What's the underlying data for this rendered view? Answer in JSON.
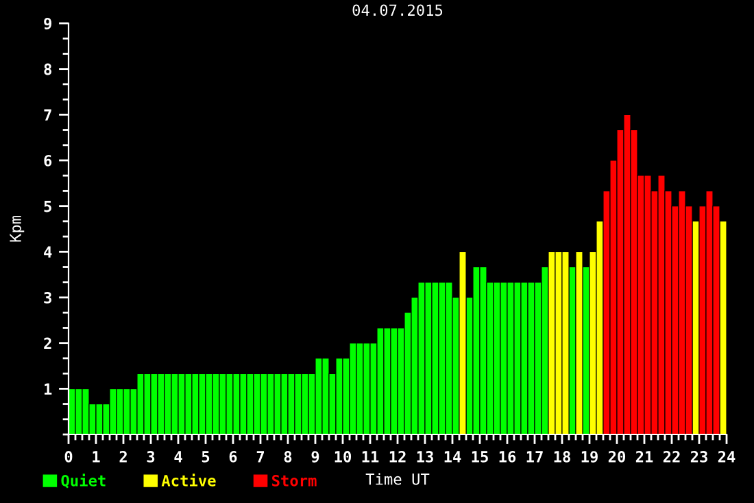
{
  "chart_data": {
    "type": "bar",
    "title": "04.07.2015",
    "xlabel": "Time UT",
    "ylabel": "Kpm",
    "x": [
      0.125,
      0.375,
      0.625,
      0.875,
      1.125,
      1.375,
      1.625,
      1.875,
      2.125,
      2.375,
      2.625,
      2.875,
      3.125,
      3.375,
      3.625,
      3.875,
      4.125,
      4.375,
      4.625,
      4.875,
      5.125,
      5.375,
      5.625,
      5.875,
      6.125,
      6.375,
      6.625,
      6.875,
      7.125,
      7.375,
      7.625,
      7.875,
      8.125,
      8.375,
      8.625,
      8.875,
      9.125,
      9.375,
      9.625,
      9.875,
      10.125,
      10.375,
      10.625,
      10.875,
      11.125,
      11.375,
      11.625,
      11.875,
      12.125,
      12.375,
      12.625,
      12.875,
      13.125,
      13.375,
      13.625,
      13.875,
      14.125,
      14.375,
      14.625,
      14.875,
      15.125,
      15.375,
      15.625,
      15.875,
      16.125,
      16.375,
      16.625,
      16.875,
      17.125,
      17.375,
      17.625,
      17.875,
      18.125,
      18.375,
      18.625,
      18.875,
      19.125,
      19.375,
      19.625,
      19.875,
      20.125,
      20.375,
      20.625,
      20.875,
      21.125,
      21.375,
      21.625,
      21.875,
      22.125,
      22.375,
      22.625,
      22.875,
      23.125,
      23.375,
      23.625,
      23.875
    ],
    "series": [
      {
        "name": "Quiet",
        "color": "#00ff00",
        "values": [
          1,
          1,
          1,
          0.67,
          0.67,
          0.67,
          1,
          1,
          1,
          1,
          1.33,
          1.33,
          1.33,
          1.33,
          1.33,
          1.33,
          1.33,
          1.33,
          1.33,
          1.33,
          1.33,
          1.33,
          1.33,
          1.33,
          1.33,
          1.33,
          1.33,
          1.33,
          1.33,
          1.33,
          1.33,
          1.33,
          1.33,
          1.33,
          1.33,
          1.33,
          1.67,
          1.67,
          1.33,
          1.67,
          1.67,
          2,
          2,
          2,
          2,
          2.33,
          2.33,
          2.33,
          2.33,
          2.67,
          3,
          3.33,
          3.33,
          3.33,
          3.33,
          3.33,
          3,
          null,
          3,
          3.67,
          3.67,
          3.33,
          3.33,
          3.33,
          3.33,
          3.33,
          3.33,
          3.33,
          3.33,
          3.67,
          null,
          null,
          null,
          3.67,
          null,
          3.67,
          null,
          null,
          null,
          null,
          null,
          null,
          null,
          null,
          null,
          null,
          null,
          null,
          null,
          null,
          null,
          null,
          null,
          null,
          null,
          null
        ]
      },
      {
        "name": "Active",
        "color": "#ffff00",
        "values": [
          null,
          null,
          null,
          null,
          null,
          null,
          null,
          null,
          null,
          null,
          null,
          null,
          null,
          null,
          null,
          null,
          null,
          null,
          null,
          null,
          null,
          null,
          null,
          null,
          null,
          null,
          null,
          null,
          null,
          null,
          null,
          null,
          null,
          null,
          null,
          null,
          null,
          null,
          null,
          null,
          null,
          null,
          null,
          null,
          null,
          null,
          null,
          null,
          null,
          null,
          null,
          null,
          null,
          null,
          null,
          null,
          null,
          4,
          null,
          null,
          null,
          null,
          null,
          null,
          null,
          null,
          null,
          null,
          null,
          null,
          4,
          4,
          4,
          null,
          4,
          null,
          4,
          4.67,
          null,
          null,
          null,
          null,
          null,
          null,
          null,
          null,
          null,
          null,
          null,
          null,
          null,
          4.67,
          null,
          null,
          null,
          4.67
        ]
      },
      {
        "name": "Storm",
        "color": "#ff0000",
        "values": [
          null,
          null,
          null,
          null,
          null,
          null,
          null,
          null,
          null,
          null,
          null,
          null,
          null,
          null,
          null,
          null,
          null,
          null,
          null,
          null,
          null,
          null,
          null,
          null,
          null,
          null,
          null,
          null,
          null,
          null,
          null,
          null,
          null,
          null,
          null,
          null,
          null,
          null,
          null,
          null,
          null,
          null,
          null,
          null,
          null,
          null,
          null,
          null,
          null,
          null,
          null,
          null,
          null,
          null,
          null,
          null,
          null,
          null,
          null,
          null,
          null,
          null,
          null,
          null,
          null,
          null,
          null,
          null,
          null,
          null,
          null,
          null,
          null,
          null,
          null,
          null,
          null,
          null,
          5.33,
          6,
          6.67,
          7,
          6.67,
          5.67,
          5.67,
          5.33,
          5.67,
          5.33,
          5,
          5.33,
          5,
          null,
          5,
          5.33,
          5,
          null
        ]
      }
    ],
    "xlim": [
      0,
      24
    ],
    "ylim": [
      0,
      9
    ],
    "xticks": [
      0,
      {
        "value": 0.25,
        "label": null
      },
      {
        "value": 0.5,
        "label": null
      },
      {
        "value": 0.75,
        "label": null
      },
      1,
      {
        "value": 1.25,
        "label": null
      },
      {
        "value": 1.5,
        "label": null
      },
      {
        "value": 1.75,
        "label": null
      },
      2,
      {
        "value": 2.25,
        "label": null
      },
      {
        "value": 2.5,
        "label": null
      },
      {
        "value": 2.75,
        "label": null
      },
      3,
      {
        "value": 3.25,
        "label": null
      },
      {
        "value": 3.5,
        "label": null
      },
      {
        "value": 3.75,
        "label": null
      },
      4,
      {
        "value": 4.25,
        "label": null
      },
      {
        "value": 4.5,
        "label": null
      },
      {
        "value": 4.75,
        "label": null
      },
      5,
      {
        "value": 5.25,
        "label": null
      },
      {
        "value": 5.5,
        "label": null
      },
      {
        "value": 5.75,
        "label": null
      },
      6,
      {
        "value": 6.25,
        "label": null
      },
      {
        "value": 6.5,
        "label": null
      },
      {
        "value": 6.75,
        "label": null
      },
      7,
      {
        "value": 7.25,
        "label": null
      },
      {
        "value": 7.5,
        "label": null
      },
      {
        "value": 7.75,
        "label": null
      },
      8,
      {
        "value": 8.25,
        "label": null
      },
      {
        "value": 8.5,
        "label": null
      },
      {
        "value": 8.75,
        "label": null
      },
      9,
      {
        "value": 9.25,
        "label": null
      },
      {
        "value": 9.5,
        "label": null
      },
      {
        "value": 9.75,
        "label": null
      },
      10,
      {
        "value": 10.25,
        "label": null
      },
      {
        "value": 10.5,
        "label": null
      },
      {
        "value": 10.75,
        "label": null
      },
      11,
      {
        "value": 11.25,
        "label": null
      },
      {
        "value": 11.5,
        "label": null
      },
      {
        "value": 11.75,
        "label": null
      },
      12,
      {
        "value": 12.25,
        "label": null
      },
      {
        "value": 12.5,
        "label": null
      },
      {
        "value": 12.75,
        "label": null
      },
      13,
      {
        "value": 13.25,
        "label": null
      },
      {
        "value": 13.5,
        "label": null
      },
      {
        "value": 13.75,
        "label": null
      },
      14,
      {
        "value": 14.25,
        "label": null
      },
      {
        "value": 14.5,
        "label": null
      },
      {
        "value": 14.75,
        "label": null
      },
      15,
      {
        "value": 15.25,
        "label": null
      },
      {
        "value": 15.5,
        "label": null
      },
      {
        "value": 15.75,
        "label": null
      },
      16,
      {
        "value": 16.25,
        "label": null
      },
      {
        "value": 16.5,
        "label": null
      },
      {
        "value": 16.75,
        "label": null
      },
      17,
      {
        "value": 17.25,
        "label": null
      },
      {
        "value": 17.5,
        "label": null
      },
      {
        "value": 17.75,
        "label": null
      },
      18,
      {
        "value": 18.25,
        "label": null
      },
      {
        "value": 18.5,
        "label": null
      },
      {
        "value": 18.75,
        "label": null
      },
      19,
      {
        "value": 19.25,
        "label": null
      },
      {
        "value": 19.5,
        "label": null
      },
      {
        "value": 19.75,
        "label": null
      },
      20,
      {
        "value": 20.25,
        "label": null
      },
      {
        "value": 20.5,
        "label": null
      },
      {
        "value": 20.75,
        "label": null
      },
      21,
      {
        "value": 21.25,
        "label": null
      },
      {
        "value": 21.5,
        "label": null
      },
      {
        "value": 21.75,
        "label": null
      },
      22,
      {
        "value": 22.25,
        "label": null
      },
      {
        "value": 22.5,
        "label": null
      },
      {
        "value": 22.75,
        "label": null
      },
      23,
      {
        "value": 23.25,
        "label": null
      },
      {
        "value": 23.5,
        "label": null
      },
      {
        "value": 23.75,
        "label": null
      },
      24
    ],
    "yticks": [
      {
        "value": 0,
        "label": null
      },
      {
        "value": 0.333,
        "label": null
      },
      {
        "value": 0.667,
        "label": null
      },
      1,
      {
        "value": 1.333,
        "label": null
      },
      {
        "value": 1.667,
        "label": null
      },
      2,
      {
        "value": 2.333,
        "label": null
      },
      {
        "value": 2.667,
        "label": null
      },
      3,
      {
        "value": 3.333,
        "label": null
      },
      {
        "value": 3.667,
        "label": null
      },
      4,
      {
        "value": 4.333,
        "label": null
      },
      {
        "value": 4.667,
        "label": null
      },
      5,
      {
        "value": 5.333,
        "label": null
      },
      {
        "value": 5.667,
        "label": null
      },
      6,
      {
        "value": 6.333,
        "label": null
      },
      {
        "value": 6.667,
        "label": null
      },
      7,
      {
        "value": 7.333,
        "label": null
      },
      {
        "value": 7.667,
        "label": null
      },
      8,
      {
        "value": 8.333,
        "label": null
      },
      {
        "value": 8.667,
        "label": null
      },
      9
    ],
    "legend": "bottom left",
    "grid": false
  }
}
